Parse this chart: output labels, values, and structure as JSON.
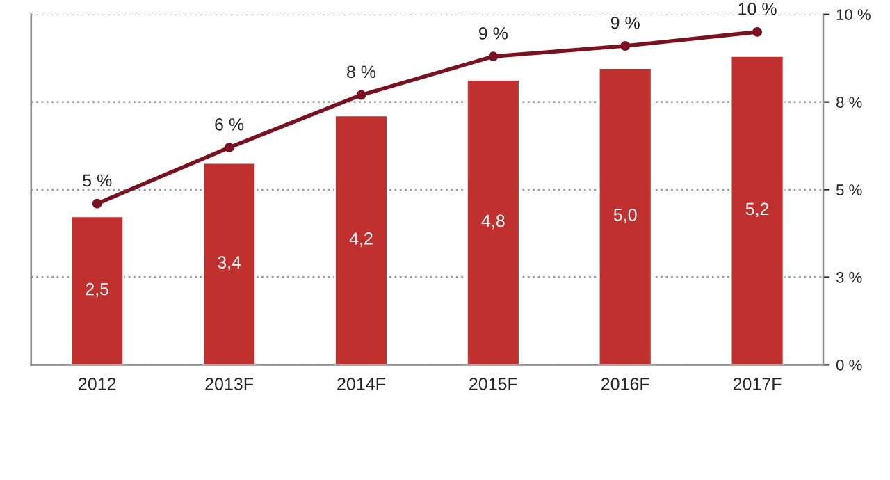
{
  "chart_data": {
    "type": "bar",
    "categories": [
      "2012",
      "2013F",
      "2014F",
      "2015F",
      "2016F",
      "2017F"
    ],
    "series": [
      {
        "color": "#c0302f",
        "values": [
          2.5,
          3.4,
          4.2,
          4.8,
          5.0,
          5.2
        ],
        "value_labels": [
          "2,5",
          "3,4",
          "4,2",
          "4,8",
          "5,0",
          "5,2"
        ]
      },
      {
        "type": "line",
        "axis": "y2",
        "color": "#7a1020",
        "values": [
          4.6,
          6.2,
          7.7,
          8.8,
          9.1,
          9.5
        ],
        "value_labels": [
          "5 %",
          "6 %",
          "8 %",
          "9 %",
          "9 %",
          "10 %"
        ]
      }
    ],
    "ylim": [
      0,
      5.9
    ],
    "y2lim": [
      0,
      10
    ],
    "y2ticks": [
      {
        "value": 0,
        "label": "0 %"
      },
      {
        "value": 2.5,
        "label": "3 %"
      },
      {
        "value": 5,
        "label": "5 %"
      },
      {
        "value": 7.5,
        "label": "8 %"
      },
      {
        "value": 10,
        "label": "10 %"
      }
    ],
    "grid": "y",
    "marker": "circle",
    "line_style": "solid"
  }
}
